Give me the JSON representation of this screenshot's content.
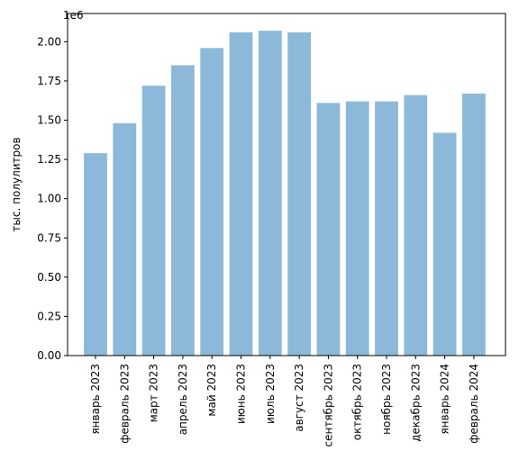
{
  "chart_data": {
    "type": "bar",
    "ylabel": "тыс. полулитров",
    "y_offset_label": "1e6",
    "ylim": [
      0,
      2.18
    ],
    "y_ticks": [
      0.0,
      0.25,
      0.5,
      0.75,
      1.0,
      1.25,
      1.5,
      1.75,
      2.0
    ],
    "y_tick_labels": [
      "0.00",
      "0.25",
      "0.50",
      "0.75",
      "1.00",
      "1.25",
      "1.50",
      "1.75",
      "2.00"
    ],
    "categories": [
      "январь 2023",
      "февраль 2023",
      "март 2023",
      "апрель 2023",
      "май 2023",
      "июнь 2023",
      "июль 2023",
      "август 2023",
      "сентябрь 2023",
      "октябрь 2023",
      "ноябрь 2023",
      "декабрь 2023",
      "январь 2024",
      "февраль 2024"
    ],
    "values": [
      1.29,
      1.48,
      1.72,
      1.85,
      1.96,
      2.06,
      2.07,
      2.06,
      1.61,
      1.62,
      1.62,
      1.66,
      1.42,
      1.67
    ],
    "bar_color": "#8cb9d9",
    "grid": false,
    "legend": "none"
  }
}
